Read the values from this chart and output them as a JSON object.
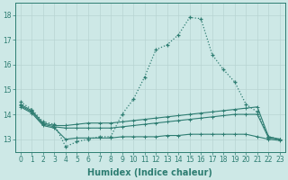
{
  "x": [
    0,
    1,
    2,
    3,
    4,
    5,
    6,
    7,
    8,
    9,
    10,
    11,
    12,
    13,
    14,
    15,
    16,
    17,
    18,
    19,
    20,
    21,
    22,
    23
  ],
  "line1": [
    14.5,
    14.2,
    13.7,
    13.6,
    12.7,
    12.9,
    13.0,
    13.1,
    13.1,
    14.0,
    14.6,
    15.5,
    16.6,
    16.8,
    17.2,
    17.9,
    17.85,
    16.4,
    15.8,
    15.3,
    14.4,
    14.1,
    13.1,
    13.0
  ],
  "line2": [
    14.4,
    14.15,
    13.65,
    13.55,
    13.55,
    13.6,
    13.65,
    13.65,
    13.65,
    13.7,
    13.75,
    13.8,
    13.85,
    13.9,
    13.95,
    14.0,
    14.05,
    14.1,
    14.15,
    14.2,
    14.25,
    14.3,
    13.1,
    13.0
  ],
  "line3": [
    14.35,
    14.1,
    13.6,
    13.5,
    13.45,
    13.45,
    13.45,
    13.45,
    13.45,
    13.5,
    13.55,
    13.6,
    13.65,
    13.7,
    13.75,
    13.8,
    13.85,
    13.9,
    13.95,
    14.0,
    14.0,
    14.0,
    13.05,
    13.0
  ],
  "line4": [
    14.3,
    14.05,
    13.55,
    13.45,
    13.0,
    13.05,
    13.05,
    13.05,
    13.05,
    13.1,
    13.1,
    13.1,
    13.1,
    13.15,
    13.15,
    13.2,
    13.2,
    13.2,
    13.2,
    13.2,
    13.2,
    13.1,
    13.0,
    12.95
  ],
  "line_color": "#2e7d72",
  "bg_color": "#cde8e6",
  "grid_color": "#b8d4d2",
  "xlabel": "Humidex (Indice chaleur)",
  "ylim": [
    12.5,
    18.5
  ],
  "xlim": [
    -0.5,
    23.5
  ],
  "yticks": [
    13,
    14,
    15,
    16,
    17,
    18
  ],
  "xticks": [
    0,
    1,
    2,
    3,
    4,
    5,
    6,
    7,
    8,
    9,
    10,
    11,
    12,
    13,
    14,
    15,
    16,
    17,
    18,
    19,
    20,
    21,
    22,
    23
  ],
  "tick_fontsize": 5.5,
  "label_fontsize": 7
}
